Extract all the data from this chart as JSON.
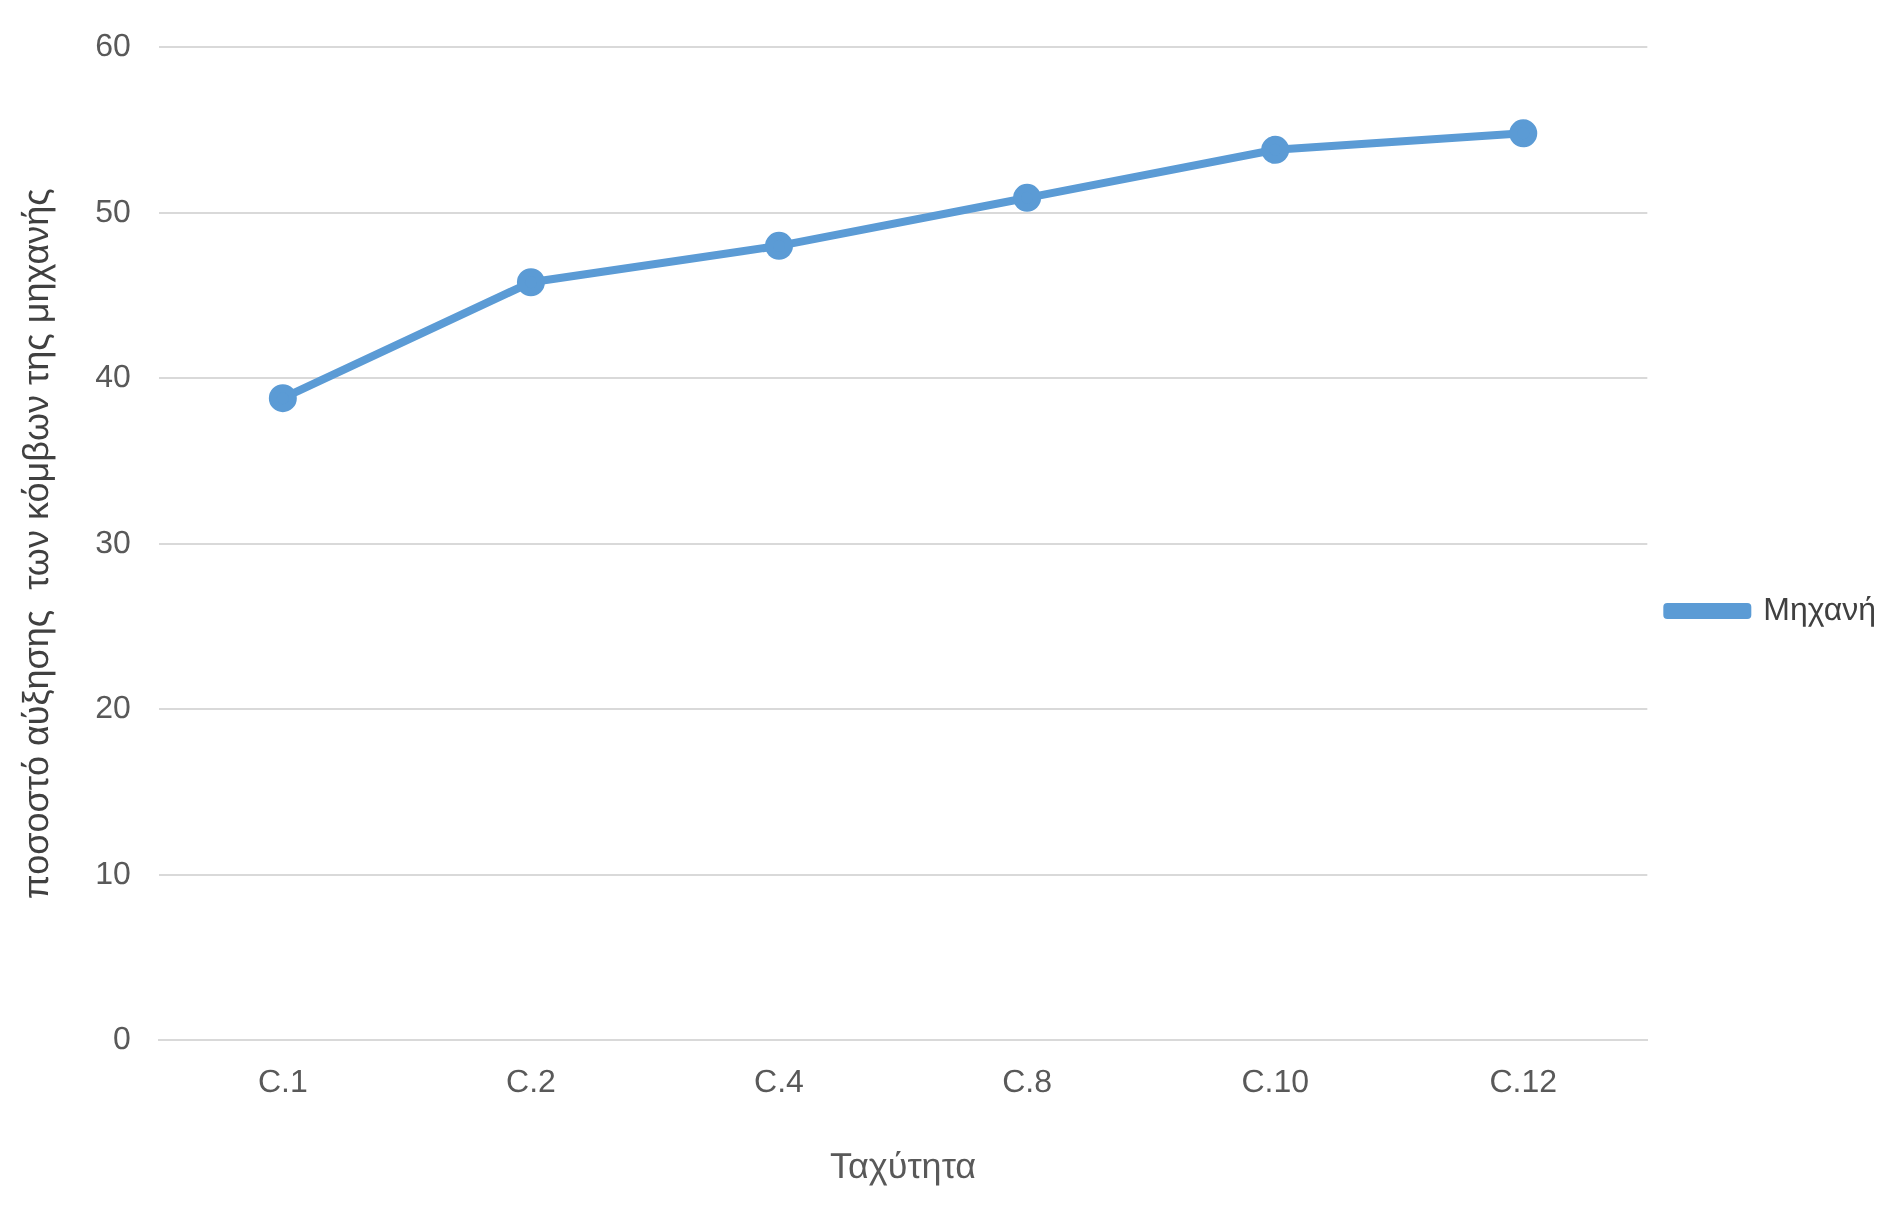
{
  "chart_data": {
    "type": "line",
    "xlabel": "Ταχύτητα",
    "ylabel": "ποσοστό αύξησης  των κόμβων της μηχανής",
    "categories": [
      "C.1",
      "C.2",
      "C.4",
      "C.8",
      "C.10",
      "C.12"
    ],
    "series": [
      {
        "name": "Μηχανή",
        "color": "#5b9bd5",
        "values": [
          38.8,
          45.8,
          48.0,
          50.9,
          53.8,
          54.8
        ]
      }
    ],
    "ylim": [
      0,
      60
    ],
    "yticks": [
      0,
      10,
      20,
      30,
      40,
      50,
      60
    ],
    "grid": "y",
    "legend": "right",
    "marker": "circle",
    "line_style": "solid"
  }
}
